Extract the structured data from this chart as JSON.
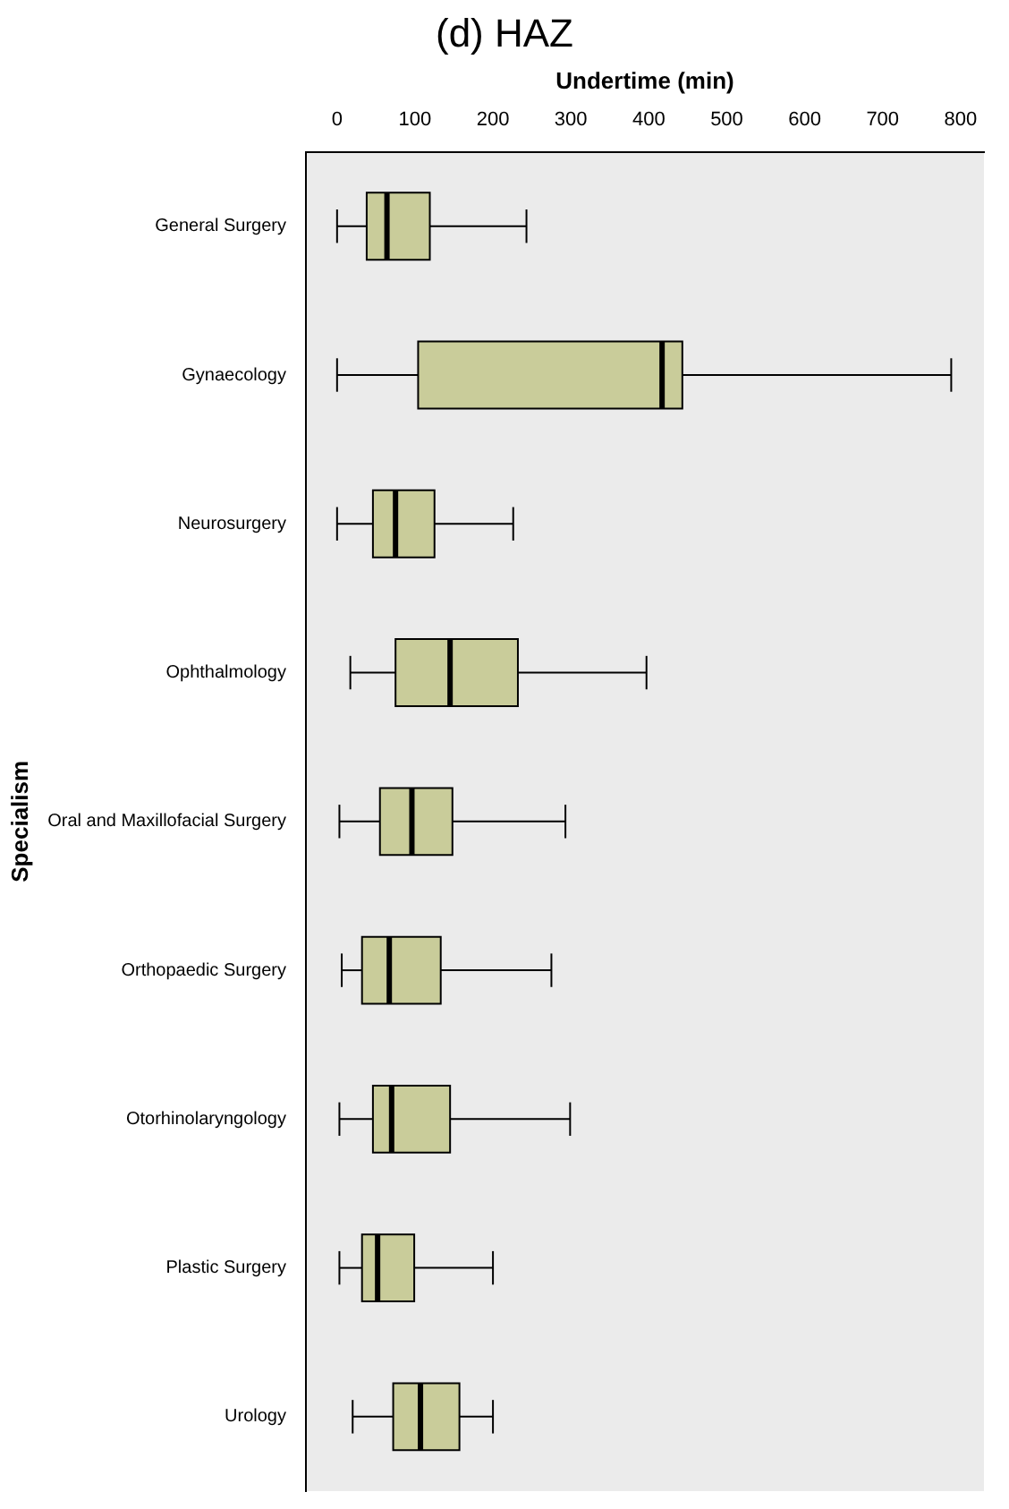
{
  "chart_data": {
    "type": "box",
    "title": "(d) HAZ",
    "xlabel": "Undertime (min)",
    "ylabel": "Specialism",
    "orientation": "horizontal",
    "categories": [
      "General Surgery",
      "Gynaecology",
      "Neurosurgery",
      "Ophthalmology",
      "Oral and Maxillofacial Surgery",
      "Orthopaedic Surgery",
      "Otorhinolaryngology",
      "Plastic Surgery",
      "Urology"
    ],
    "color": "#c9cc9a",
    "xlim": [
      -40,
      830
    ],
    "xticks": [
      0,
      100,
      200,
      300,
      400,
      500,
      600,
      700,
      800
    ],
    "grid": false,
    "legend": false,
    "boxes": [
      {
        "low": 0,
        "q1": 38,
        "median": 64,
        "q3": 119,
        "high": 243
      },
      {
        "low": 0,
        "q1": 104,
        "median": 417,
        "q3": 443,
        "high": 788
      },
      {
        "low": 0,
        "q1": 46,
        "median": 75,
        "q3": 125,
        "high": 226
      },
      {
        "low": 17,
        "q1": 75,
        "median": 145,
        "q3": 232,
        "high": 397
      },
      {
        "low": 3,
        "q1": 55,
        "median": 96,
        "q3": 148,
        "high": 293
      },
      {
        "low": 6,
        "q1": 32,
        "median": 67,
        "q3": 133,
        "high": 275
      },
      {
        "low": 3,
        "q1": 46,
        "median": 70,
        "q3": 145,
        "high": 299
      },
      {
        "low": 3,
        "q1": 32,
        "median": 52,
        "q3": 99,
        "high": 200
      },
      {
        "low": 20,
        "q1": 72,
        "median": 107,
        "q3": 157,
        "high": 200
      }
    ]
  }
}
